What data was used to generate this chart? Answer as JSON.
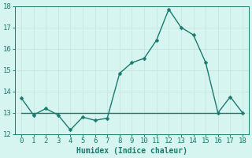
{
  "x": [
    0,
    1,
    2,
    3,
    4,
    5,
    6,
    7,
    8,
    9,
    10,
    11,
    12,
    13,
    14,
    15,
    16,
    17,
    18
  ],
  "y_data": [
    13.7,
    12.9,
    13.2,
    12.9,
    12.2,
    12.8,
    12.65,
    12.75,
    14.85,
    15.35,
    15.55,
    16.4,
    17.85,
    17.0,
    16.65,
    15.35,
    13.0,
    13.75,
    13.0
  ],
  "y_flat": [
    13.0,
    13.0,
    13.0,
    13.0,
    13.0,
    13.0,
    13.0,
    13.0,
    13.0,
    13.0,
    13.0,
    13.0,
    13.0,
    13.0,
    13.0,
    13.0,
    13.0,
    13.0,
    13.0
  ],
  "xlabel": "Humidex (Indice chaleur)",
  "xlim": [
    -0.5,
    18.5
  ],
  "ylim": [
    12,
    18
  ],
  "yticks": [
    12,
    13,
    14,
    15,
    16,
    17,
    18
  ],
  "xticks": [
    0,
    1,
    2,
    3,
    4,
    5,
    6,
    7,
    8,
    9,
    10,
    11,
    12,
    13,
    14,
    15,
    16,
    17,
    18
  ],
  "line_color": "#1a7a6e",
  "bg_color": "#d6f5f0",
  "grid_color": "#c8e8e0",
  "axis_color": "#1a7a6e",
  "xlabel_fontsize": 7,
  "tick_fontsize": 6.5,
  "line_width": 1.0,
  "marker_size": 2.5
}
